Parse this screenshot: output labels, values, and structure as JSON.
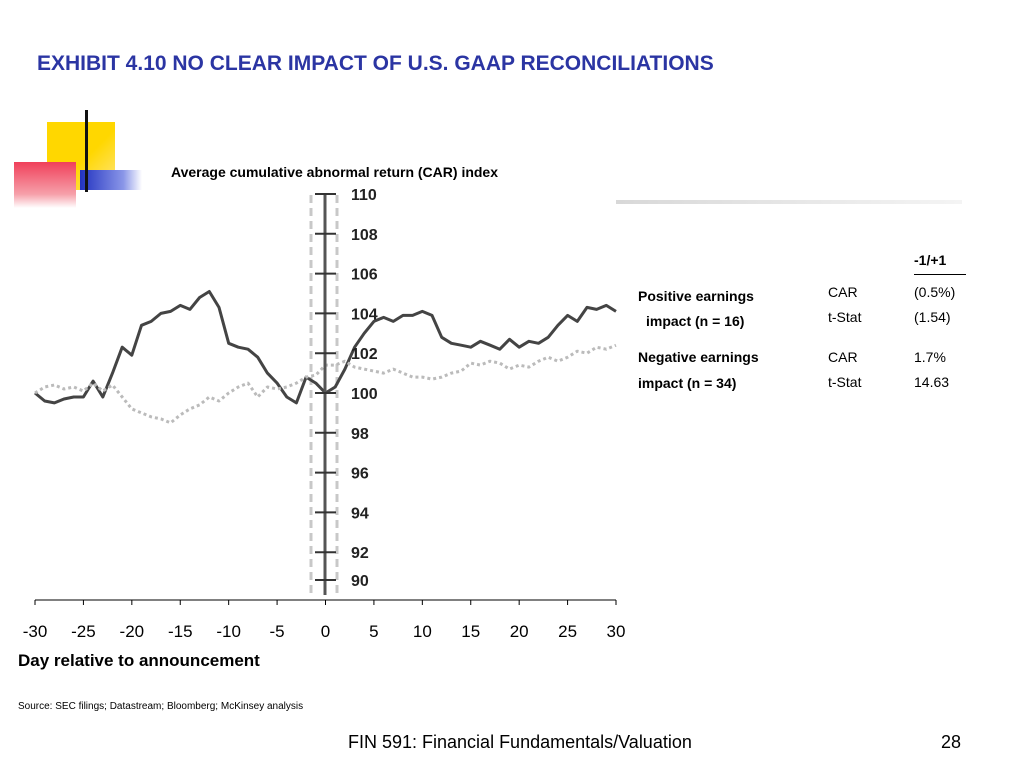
{
  "slide": {
    "title": "EXHIBIT 4.10 NO CLEAR IMPACT OF U.S. GAAP RECONCILIATIONS",
    "source": "Source: SEC filings; Datastream; Bloomberg; McKinsey analysis",
    "footer": "FIN 591: Financial Fundamentals/Valuation",
    "page_number": "28",
    "colors": {
      "title": "#2b35a3",
      "deco_yellow": "#ffd700",
      "deco_red": "#f0405a",
      "deco_blue": "#2233c0"
    }
  },
  "chart_data": {
    "type": "line",
    "title": "Average cumulative abnormal return (CAR) index",
    "xlabel": "Day relative to announcement",
    "ylabel": "",
    "xlim": [
      -30,
      30
    ],
    "ylim": [
      90,
      110
    ],
    "x_ticks": [
      -30,
      -25,
      -20,
      -15,
      -10,
      -5,
      0,
      5,
      10,
      15,
      20,
      25,
      30
    ],
    "y_ticks": [
      90,
      92,
      94,
      96,
      98,
      100,
      102,
      104,
      106,
      108,
      110
    ],
    "series": [
      {
        "name": "",
        "style": "solid",
        "color": "#444444",
        "points": [
          [
            -30,
            100.0
          ],
          [
            -29,
            99.6
          ],
          [
            -28,
            99.5
          ],
          [
            -27,
            99.7
          ],
          [
            -26,
            99.8
          ],
          [
            -25,
            99.8
          ],
          [
            -24,
            100.6
          ],
          [
            -23,
            99.8
          ],
          [
            -22,
            101.0
          ],
          [
            -21,
            102.3
          ],
          [
            -20,
            101.9
          ],
          [
            -19,
            103.4
          ],
          [
            -18,
            103.6
          ],
          [
            -17,
            104.0
          ],
          [
            -16,
            104.1
          ],
          [
            -15,
            104.4
          ],
          [
            -14,
            104.2
          ],
          [
            -13,
            104.8
          ],
          [
            -12,
            105.1
          ],
          [
            -11,
            104.3
          ],
          [
            -10,
            102.5
          ],
          [
            -9,
            102.3
          ],
          [
            -8,
            102.2
          ],
          [
            -7,
            101.8
          ],
          [
            -6,
            101.0
          ],
          [
            -5,
            100.5
          ],
          [
            -4,
            99.8
          ],
          [
            -3,
            99.5
          ],
          [
            -2,
            100.8
          ],
          [
            -1,
            100.5
          ],
          [
            0,
            100.0
          ],
          [
            1,
            100.3
          ],
          [
            2,
            101.2
          ],
          [
            3,
            102.3
          ],
          [
            4,
            103.0
          ],
          [
            5,
            103.6
          ],
          [
            6,
            103.8
          ],
          [
            7,
            103.6
          ],
          [
            8,
            103.9
          ],
          [
            9,
            103.9
          ],
          [
            10,
            104.1
          ],
          [
            11,
            103.9
          ],
          [
            12,
            102.8
          ],
          [
            13,
            102.5
          ],
          [
            14,
            102.4
          ],
          [
            15,
            102.3
          ],
          [
            16,
            102.6
          ],
          [
            17,
            102.4
          ],
          [
            18,
            102.2
          ],
          [
            19,
            102.7
          ],
          [
            20,
            102.3
          ],
          [
            21,
            102.6
          ],
          [
            22,
            102.5
          ],
          [
            23,
            102.8
          ],
          [
            24,
            103.4
          ],
          [
            25,
            103.9
          ],
          [
            26,
            103.6
          ],
          [
            27,
            104.3
          ],
          [
            28,
            104.2
          ],
          [
            29,
            104.4
          ],
          [
            30,
            104.1
          ]
        ]
      },
      {
        "name": "",
        "style": "dotted",
        "color": "#bbbbbb",
        "points": [
          [
            -30,
            100.0
          ],
          [
            -29,
            100.3
          ],
          [
            -28,
            100.4
          ],
          [
            -27,
            100.2
          ],
          [
            -26,
            100.3
          ],
          [
            -25,
            100.1
          ],
          [
            -24,
            100.5
          ],
          [
            -23,
            100.1
          ],
          [
            -22,
            100.4
          ],
          [
            -21,
            99.8
          ],
          [
            -20,
            99.2
          ],
          [
            -19,
            99.0
          ],
          [
            -18,
            98.8
          ],
          [
            -17,
            98.7
          ],
          [
            -16,
            98.5
          ],
          [
            -15,
            98.9
          ],
          [
            -14,
            99.2
          ],
          [
            -13,
            99.4
          ],
          [
            -12,
            99.8
          ],
          [
            -11,
            99.6
          ],
          [
            -10,
            100.0
          ],
          [
            -9,
            100.3
          ],
          [
            -8,
            100.5
          ],
          [
            -7,
            99.8
          ],
          [
            -6,
            100.3
          ],
          [
            -5,
            100.2
          ],
          [
            -4,
            100.3
          ],
          [
            -3,
            100.5
          ],
          [
            -2,
            100.8
          ],
          [
            -1,
            100.9
          ],
          [
            0,
            101.4
          ],
          [
            1,
            101.4
          ],
          [
            2,
            101.6
          ],
          [
            3,
            101.3
          ],
          [
            4,
            101.2
          ],
          [
            5,
            101.1
          ],
          [
            6,
            101.0
          ],
          [
            7,
            101.2
          ],
          [
            8,
            101.0
          ],
          [
            9,
            100.8
          ],
          [
            10,
            100.8
          ],
          [
            11,
            100.7
          ],
          [
            12,
            100.8
          ],
          [
            13,
            101.0
          ],
          [
            14,
            101.1
          ],
          [
            15,
            101.5
          ],
          [
            16,
            101.4
          ],
          [
            17,
            101.6
          ],
          [
            18,
            101.5
          ],
          [
            19,
            101.2
          ],
          [
            20,
            101.4
          ],
          [
            21,
            101.3
          ],
          [
            22,
            101.6
          ],
          [
            23,
            101.8
          ],
          [
            24,
            101.6
          ],
          [
            25,
            101.8
          ],
          [
            26,
            102.1
          ],
          [
            27,
            102.0
          ],
          [
            28,
            102.3
          ],
          [
            29,
            102.2
          ],
          [
            30,
            102.4
          ]
        ]
      }
    ],
    "table": {
      "column_header": "-1/+1",
      "rows": [
        {
          "group_line1": "Positive earnings",
          "group_line2": "impact (n = 16)",
          "metric1": "CAR",
          "value1": "(0.5%)",
          "metric2": "t-Stat",
          "value2": "(1.54)"
        },
        {
          "group_line1": "Negative earnings",
          "group_line2": "impact (n = 34)",
          "metric1": "CAR",
          "value1": "1.7%",
          "metric2": "t-Stat",
          "value2": "14.63"
        }
      ]
    }
  }
}
